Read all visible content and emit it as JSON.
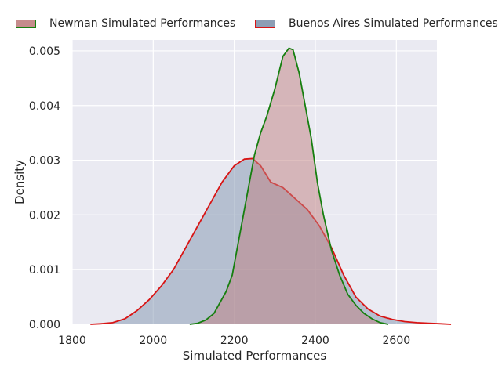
{
  "chart_data": {
    "type": "area",
    "title": "",
    "xlabel": "Simulated Performances",
    "ylabel": "Density",
    "xlim": [
      1800,
      2700
    ],
    "ylim": [
      0,
      0.0052
    ],
    "xticks": [
      1800,
      2000,
      2200,
      2400,
      2600
    ],
    "xtick_labels": [
      "1800",
      "2000",
      "2200",
      "2400",
      "2600"
    ],
    "yticks": [
      0,
      0.001,
      0.002,
      0.003,
      0.004,
      0.005
    ],
    "ytick_labels": [
      "0.000",
      "0.001",
      "0.002",
      "0.003",
      "0.004",
      "0.005"
    ],
    "grid": true,
    "legend_position": "top",
    "series": [
      {
        "name": "Newman Simulated Performances",
        "line_color": "#167f0f",
        "fill_color": "#c08080",
        "points": [
          [
            2090,
            0.0
          ],
          [
            2110,
            2e-05
          ],
          [
            2130,
            8e-05
          ],
          [
            2150,
            0.0002
          ],
          [
            2165,
            0.0004
          ],
          [
            2180,
            0.0006
          ],
          [
            2195,
            0.0009
          ],
          [
            2210,
            0.0015
          ],
          [
            2230,
            0.0023
          ],
          [
            2250,
            0.0031
          ],
          [
            2265,
            0.0035
          ],
          [
            2280,
            0.0038
          ],
          [
            2300,
            0.0043
          ],
          [
            2320,
            0.0049
          ],
          [
            2335,
            0.00505
          ],
          [
            2345,
            0.00502
          ],
          [
            2360,
            0.0046
          ],
          [
            2375,
            0.004
          ],
          [
            2390,
            0.0034
          ],
          [
            2405,
            0.0026
          ],
          [
            2420,
            0.002
          ],
          [
            2440,
            0.00135
          ],
          [
            2460,
            0.0009
          ],
          [
            2480,
            0.00055
          ],
          [
            2500,
            0.00035
          ],
          [
            2520,
            0.0002
          ],
          [
            2540,
            0.0001
          ],
          [
            2560,
            3e-05
          ],
          [
            2580,
            0.0
          ]
        ]
      },
      {
        "name": "Buenos Aires Simulated Performances",
        "line_color": "#d81414",
        "fill_color": "#7f94ad",
        "points": [
          [
            1845,
            0.0
          ],
          [
            1870,
            1e-05
          ],
          [
            1900,
            3e-05
          ],
          [
            1930,
            0.0001
          ],
          [
            1960,
            0.00025
          ],
          [
            1990,
            0.00045
          ],
          [
            2020,
            0.0007
          ],
          [
            2050,
            0.001
          ],
          [
            2080,
            0.0014
          ],
          [
            2110,
            0.0018
          ],
          [
            2140,
            0.0022
          ],
          [
            2170,
            0.0026
          ],
          [
            2200,
            0.0029
          ],
          [
            2225,
            0.00302
          ],
          [
            2245,
            0.00303
          ],
          [
            2265,
            0.0029
          ],
          [
            2290,
            0.0026
          ],
          [
            2320,
            0.0025
          ],
          [
            2350,
            0.0023
          ],
          [
            2380,
            0.0021
          ],
          [
            2410,
            0.0018
          ],
          [
            2440,
            0.0014
          ],
          [
            2470,
            0.0009
          ],
          [
            2500,
            0.0005
          ],
          [
            2530,
            0.00028
          ],
          [
            2560,
            0.00015
          ],
          [
            2590,
            9e-05
          ],
          [
            2620,
            5e-05
          ],
          [
            2650,
            3e-05
          ],
          [
            2680,
            2e-05
          ],
          [
            2710,
            1e-05
          ],
          [
            2735,
            0.0
          ]
        ]
      }
    ]
  }
}
